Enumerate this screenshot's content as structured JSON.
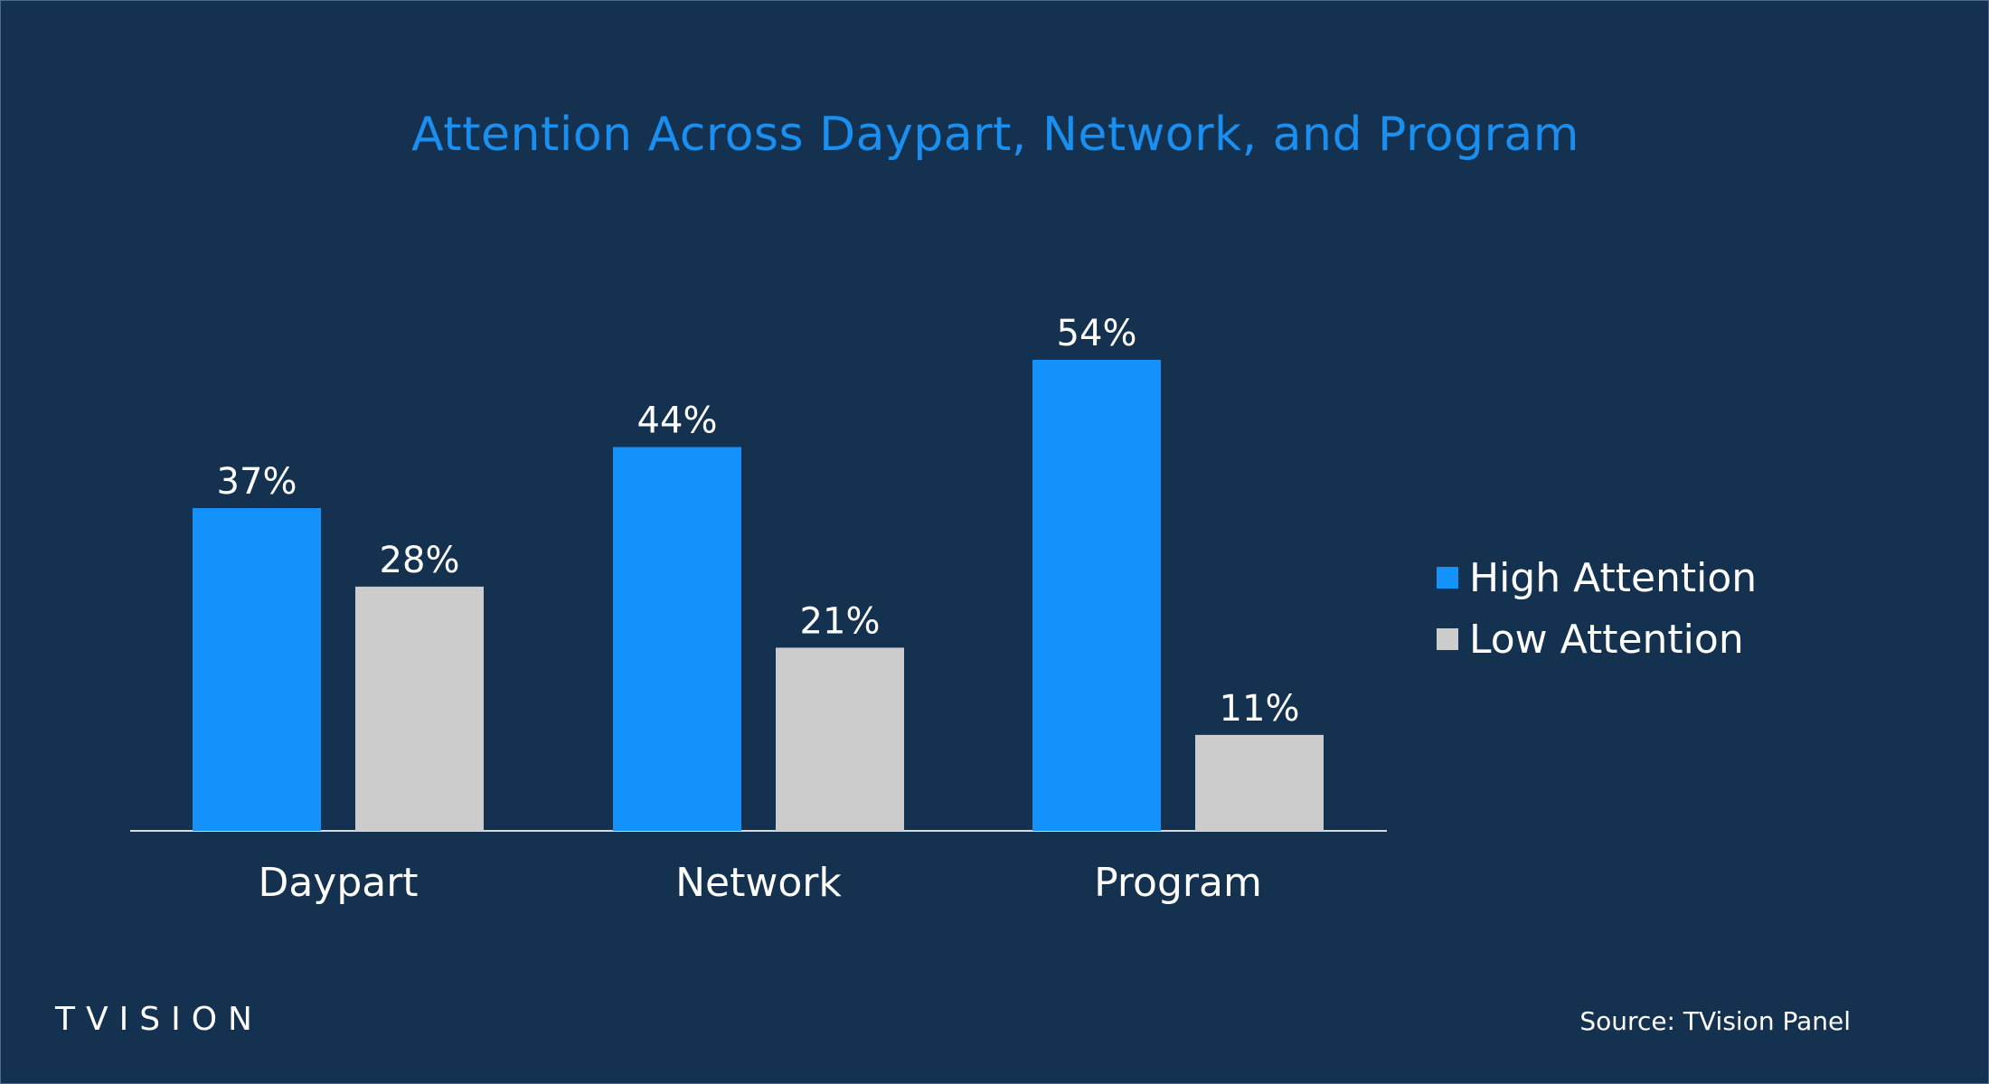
{
  "title": "Attention Across Daypart, Network, and Program",
  "source": "Source: TVision Panel",
  "logo_text": "TVISION",
  "colors": {
    "background": "#143250",
    "high": "#1492fb",
    "low": "#cccccc",
    "title": "#1a8ff0"
  },
  "legend": [
    {
      "name": "High Attention",
      "color": "#1492fb"
    },
    {
      "name": "Low Attention",
      "color": "#cccccc"
    }
  ],
  "chart_data": {
    "type": "bar",
    "title": "Attention Across Daypart, Network, and Program",
    "categories": [
      "Daypart",
      "Network",
      "Program"
    ],
    "series": [
      {
        "name": "High Attention",
        "values": [
          37,
          44,
          54
        ],
        "labels": [
          "37%",
          "44%",
          "54%"
        ]
      },
      {
        "name": "Low Attention",
        "values": [
          28,
          21,
          11
        ],
        "labels": [
          "28%",
          "21%",
          "11%"
        ]
      }
    ],
    "xlabel": "",
    "ylabel": "",
    "ylim": [
      0,
      54
    ],
    "grid": false,
    "legend_position": "right"
  }
}
